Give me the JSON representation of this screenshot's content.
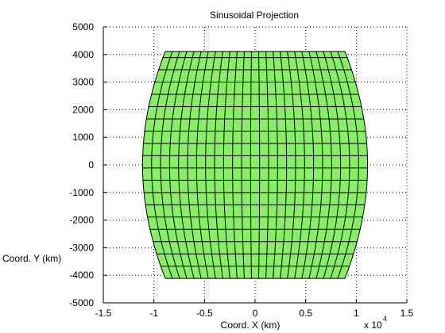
{
  "chart_data": {
    "type": "projection",
    "title": "Sinusoidal Projection",
    "xlabel": "Coord. X (km)",
    "ylabel": "Coord. Y (km)",
    "x_multiplier_label": "x 10",
    "x_multiplier_exponent": "4",
    "xlim": [
      -15000,
      15000
    ],
    "ylim": [
      -5000,
      5000
    ],
    "x_ticks": [
      -15000,
      -10000,
      -5000,
      0,
      5000,
      10000,
      15000
    ],
    "x_tick_labels": [
      "-1.5",
      "-1",
      "-0.5",
      "0",
      "0.5",
      "1",
      "1.5"
    ],
    "y_ticks": [
      -5000,
      -4000,
      -3000,
      -2000,
      -1000,
      0,
      1000,
      2000,
      3000,
      4000,
      5000
    ],
    "y_tick_labels": [
      "-5000",
      "-4000",
      "-3000",
      "-2000",
      "-1000",
      "0",
      "1000",
      "2000",
      "3000",
      "4000",
      "5000"
    ],
    "grid": true,
    "projection": "sinusoidal",
    "earth_radius_km": 6371,
    "lat_range_deg": [
      -37,
      37
    ],
    "lon_range_deg": [
      -100,
      100
    ],
    "lat_step_deg": 4,
    "lon_step_deg": 8,
    "surface_color": "#88ee66",
    "graticule_color": "#000000"
  }
}
